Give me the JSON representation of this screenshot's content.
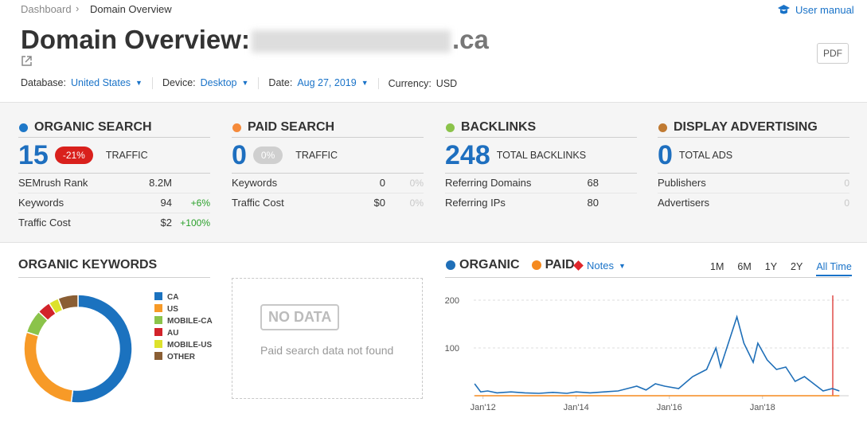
{
  "breadcrumb": {
    "home": "Dashboard",
    "current": "Domain Overview"
  },
  "user_manual": "User manual",
  "title": "Domain Overview:",
  "domain": ".ca",
  "pdf": "PDF",
  "filters": [
    {
      "label": "Database:",
      "value": "United States"
    },
    {
      "label": "Device:",
      "value": "Desktop"
    },
    {
      "label": "Date:",
      "value": "Aug 27, 2019"
    },
    {
      "label": "Currency:",
      "value": "USD"
    }
  ],
  "cards": [
    {
      "title": "ORGANIC SEARCH",
      "color": "#1e78c8",
      "value": "15",
      "badge": "-21%",
      "badge_color": "#d9201c",
      "value_label": "TRAFFIC",
      "rows": [
        {
          "label": "SEMrush Rank",
          "value": "8.2M"
        },
        {
          "label": "Keywords",
          "value": "94",
          "change": "+6%",
          "change_color": "#2aa02a"
        },
        {
          "label": "Traffic Cost",
          "value": "$2",
          "change": "+100%",
          "change_color": "#2aa02a"
        }
      ]
    },
    {
      "title": "PAID SEARCH",
      "color": "#f58a3a",
      "value": "0",
      "badge": "0%",
      "badge_color": "#cfcfcf",
      "value_label": "TRAFFIC",
      "rows": [
        {
          "label": "Keywords",
          "value": "0",
          "change": "0%",
          "change_color": "#c8c8c8"
        },
        {
          "label": "Traffic Cost",
          "value": "$0",
          "change": "0%",
          "change_color": "#c8c8c8"
        }
      ]
    },
    {
      "title": "BACKLINKS",
      "color": "#8bc34a",
      "value": "248",
      "value_label": "TOTAL BACKLINKS",
      "rows": [
        {
          "label": "Referring Domains",
          "value": "68"
        },
        {
          "label": "Referring IPs",
          "value": "80"
        }
      ]
    },
    {
      "title": "DISPLAY ADVERTISING",
      "color": "#c07a32",
      "value": "0",
      "value_label": "TOTAL ADS",
      "rows": [
        {
          "label": "Publishers",
          "change": "0",
          "change_color": "#c8c8c8"
        },
        {
          "label": "Advertisers",
          "change": "0",
          "change_color": "#c8c8c8"
        }
      ]
    }
  ],
  "keywords_title": "ORGANIC KEYWORDS",
  "no_data": {
    "badge": "NO DATA",
    "message": "Paid search data not found"
  },
  "notes": "Notes",
  "periods": [
    "1M",
    "6M",
    "1Y",
    "2Y",
    "All Time"
  ],
  "chart_data": [
    {
      "type": "pie",
      "categories": [
        "CA",
        "US",
        "MOBILE-CA",
        "AU",
        "MOBILE-US",
        "OTHER"
      ],
      "values": [
        52,
        28,
        7,
        4,
        3,
        6
      ],
      "colors": [
        "#1b72bf",
        "#f79a27",
        "#8bc34a",
        "#d2232a",
        "#dde22c",
        "#8a5e34"
      ]
    },
    {
      "type": "line",
      "xlim": [
        2011.8,
        2019.85
      ],
      "xticks": [
        {
          "value": 2012,
          "label": "Jan'12"
        },
        {
          "value": 2014,
          "label": "Jan'14"
        },
        {
          "value": 2016,
          "label": "Jan'16"
        },
        {
          "value": 2018,
          "label": "Jan'18"
        }
      ],
      "ylim": [
        0,
        210
      ],
      "yticks": [
        100,
        200
      ],
      "grid": true,
      "series": [
        {
          "name": "ORGANIC",
          "color": "#1f6fb8",
          "x": [
            2011.82,
            2011.95,
            2012.1,
            2012.3,
            2012.6,
            2012.9,
            2013.2,
            2013.5,
            2013.8,
            2014.0,
            2014.3,
            2014.6,
            2014.9,
            2015.1,
            2015.3,
            2015.5,
            2015.7,
            2015.9,
            2016.2,
            2016.5,
            2016.8,
            2017.0,
            2017.1,
            2017.3,
            2017.45,
            2017.6,
            2017.8,
            2017.9,
            2018.1,
            2018.3,
            2018.5,
            2018.7,
            2018.9,
            2019.1,
            2019.3,
            2019.5,
            2019.65
          ],
          "values": [
            25,
            8,
            10,
            6,
            8,
            6,
            5,
            7,
            5,
            8,
            6,
            8,
            10,
            15,
            20,
            12,
            25,
            20,
            15,
            40,
            55,
            100,
            60,
            120,
            165,
            110,
            70,
            110,
            75,
            55,
            60,
            30,
            40,
            25,
            10,
            15,
            10
          ]
        },
        {
          "name": "PAID",
          "color": "#f58a1f",
          "x": [
            2011.82,
            2019.65
          ],
          "values": [
            0,
            0
          ]
        }
      ]
    }
  ]
}
